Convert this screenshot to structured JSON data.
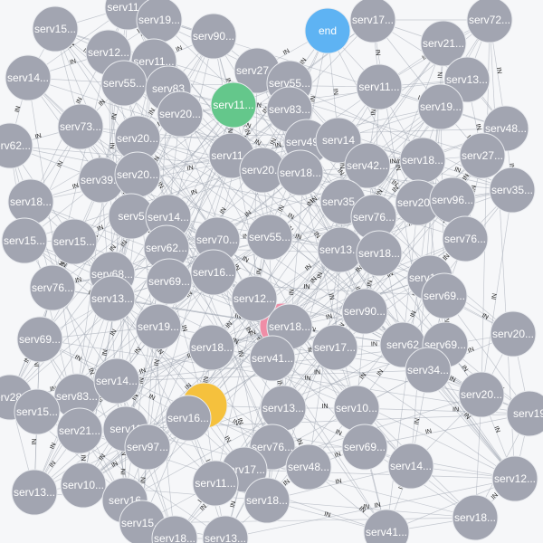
{
  "graph": {
    "edge_label": "IN",
    "colors": {
      "background": "#f6f7f9",
      "node": "#a2a5b1",
      "edge": "#9aa1ad",
      "end": "#5eb3f3",
      "start": "#64c78b",
      "highlight_pink": "#ef8da6",
      "highlight_yellow": "#f5c13d",
      "label_light": "#ffffff",
      "label_dark": "#222222"
    },
    "nodes": [
      {
        "id": "n0",
        "label": "serv11...",
        "color": "node"
      },
      {
        "id": "n1",
        "label": "serv19...",
        "color": "node"
      },
      {
        "id": "n2",
        "label": "serv15...",
        "color": "node"
      },
      {
        "id": "n3",
        "label": "serv90...",
        "color": "node"
      },
      {
        "id": "n4",
        "label": "end",
        "color": "end"
      },
      {
        "id": "n5",
        "label": "serv17...",
        "color": "node"
      },
      {
        "id": "n6",
        "label": "serv72...",
        "color": "node"
      },
      {
        "id": "n7",
        "label": "serv12...",
        "color": "node"
      },
      {
        "id": "n8",
        "label": "serv11...",
        "color": "node"
      },
      {
        "id": "n9",
        "label": "serv21...",
        "color": "node"
      },
      {
        "id": "n10",
        "label": "serv14...",
        "color": "node"
      },
      {
        "id": "n11",
        "label": "serv55...",
        "color": "node"
      },
      {
        "id": "n12",
        "label": "serv83",
        "color": "node"
      },
      {
        "id": "n13",
        "label": "serv27...",
        "color": "node"
      },
      {
        "id": "n14",
        "label": "serv55...",
        "color": "node"
      },
      {
        "id": "n15",
        "label": "serv11...",
        "color": "node"
      },
      {
        "id": "n16",
        "label": "serv13...",
        "color": "node"
      },
      {
        "id": "n17",
        "label": "serv11...",
        "color": "start"
      },
      {
        "id": "n18",
        "label": "serv20...",
        "color": "node"
      },
      {
        "id": "n19",
        "label": "serv83...",
        "color": "node"
      },
      {
        "id": "n20",
        "label": "serv19...",
        "color": "node"
      },
      {
        "id": "n21",
        "label": "serv48...",
        "color": "node"
      },
      {
        "id": "n22",
        "label": "serv73...",
        "color": "node"
      },
      {
        "id": "n23",
        "label": "serv20...",
        "color": "node"
      },
      {
        "id": "n24",
        "label": "serv49...",
        "color": "node"
      },
      {
        "id": "n25",
        "label": "serv14",
        "color": "node"
      },
      {
        "id": "n26",
        "label": "serv62...",
        "color": "node"
      },
      {
        "id": "n27",
        "label": "serv11...",
        "color": "node"
      },
      {
        "id": "n28",
        "label": "serv20...",
        "color": "node"
      },
      {
        "id": "n29",
        "label": "serv18...",
        "color": "node"
      },
      {
        "id": "n30",
        "label": "serv42...",
        "color": "node"
      },
      {
        "id": "n31",
        "label": "serv18...",
        "color": "node"
      },
      {
        "id": "n32",
        "label": "serv27...",
        "color": "node"
      },
      {
        "id": "n33",
        "label": "serv39...",
        "color": "node"
      },
      {
        "id": "n34",
        "label": "serv20...",
        "color": "node"
      },
      {
        "id": "n35",
        "label": "serv18...",
        "color": "node"
      },
      {
        "id": "n36",
        "label": "serv35...",
        "color": "node"
      },
      {
        "id": "n37",
        "label": "serv20...",
        "color": "node"
      },
      {
        "id": "n38",
        "label": "serv96...",
        "color": "node"
      },
      {
        "id": "n39",
        "label": "serv35...",
        "color": "node"
      },
      {
        "id": "n40",
        "label": "serv5",
        "color": "node"
      },
      {
        "id": "n41",
        "label": "serv14...",
        "color": "node"
      },
      {
        "id": "n42",
        "label": "serv76...",
        "color": "node"
      },
      {
        "id": "n43",
        "label": "serv15...",
        "color": "node"
      },
      {
        "id": "n44",
        "label": "serv15...",
        "color": "node"
      },
      {
        "id": "n45",
        "label": "serv62...",
        "color": "node"
      },
      {
        "id": "n46",
        "label": "serv70...",
        "color": "node"
      },
      {
        "id": "n47",
        "label": "serv55...",
        "color": "node"
      },
      {
        "id": "n48",
        "label": "serv13...",
        "color": "node"
      },
      {
        "id": "n49",
        "label": "serv18...",
        "color": "node"
      },
      {
        "id": "n50",
        "label": "serv76...",
        "color": "node"
      },
      {
        "id": "n51",
        "label": "serv68...",
        "color": "node"
      },
      {
        "id": "n52",
        "label": "serv16...",
        "color": "node"
      },
      {
        "id": "n53",
        "label": "serv13...",
        "color": "node"
      },
      {
        "id": "n54",
        "label": "serv76...",
        "color": "node"
      },
      {
        "id": "n55",
        "label": "serv69...",
        "color": "node"
      },
      {
        "id": "n56",
        "label": "serv13...",
        "color": "node"
      },
      {
        "id": "n57",
        "label": "serv12...",
        "color": "node"
      },
      {
        "id": "n58",
        "label": "serv69...",
        "color": "node"
      },
      {
        "id": "n59",
        "label": "serv90...",
        "color": "node"
      },
      {
        "id": "n60",
        "label": "serv19...",
        "color": "node"
      },
      {
        "id": "n61",
        "label": "serv18...",
        "color": "node"
      },
      {
        "id": "n62",
        "label": "serv17...",
        "color": "node"
      },
      {
        "id": "n63",
        "label": "serv62",
        "color": "node"
      },
      {
        "id": "n64",
        "label": "serv69...",
        "color": "node"
      },
      {
        "id": "n65",
        "label": "serv20...",
        "color": "node"
      },
      {
        "id": "n66",
        "label": "serv69...",
        "color": "node"
      },
      {
        "id": "n67",
        "label": "serv18...",
        "color": "node"
      },
      {
        "id": "n68",
        "label": "serv41...",
        "color": "node"
      },
      {
        "id": "n69",
        "label": "serv34...",
        "color": "node"
      },
      {
        "id": "n70",
        "label": "serv28...",
        "color": "node"
      },
      {
        "id": "n71",
        "label": "serv83...",
        "color": "node"
      },
      {
        "id": "n72",
        "label": "serv14...",
        "color": "node"
      },
      {
        "id": "n73",
        "label": "serv15...",
        "color": "node"
      },
      {
        "id": "n74",
        "label": "serv13...",
        "color": "node"
      },
      {
        "id": "n75",
        "label": "serv10...",
        "color": "node"
      },
      {
        "id": "n76",
        "label": "serv20...",
        "color": "node"
      },
      {
        "id": "n77",
        "label": "serv19",
        "color": "node"
      },
      {
        "id": "n78",
        "label": "serv16...",
        "color": "node"
      },
      {
        "id": "n79",
        "label": "serv21...",
        "color": "node"
      },
      {
        "id": "n80",
        "label": "serv11",
        "color": "node"
      },
      {
        "id": "n81",
        "label": "serv97...",
        "color": "node"
      },
      {
        "id": "n82",
        "label": "serv76...",
        "color": "node"
      },
      {
        "id": "n83",
        "label": "serv69...",
        "color": "node"
      },
      {
        "id": "n84",
        "label": "serv14...",
        "color": "node"
      },
      {
        "id": "n85",
        "label": "serv17...",
        "color": "node"
      },
      {
        "id": "n86",
        "label": "serv48...",
        "color": "node"
      },
      {
        "id": "n87",
        "label": "serv13...",
        "color": "node"
      },
      {
        "id": "n88",
        "label": "serv10...",
        "color": "node"
      },
      {
        "id": "n89",
        "label": "serv11...",
        "color": "node"
      },
      {
        "id": "n90",
        "label": "serv16",
        "color": "node"
      },
      {
        "id": "n91",
        "label": "serv18...",
        "color": "node"
      },
      {
        "id": "n92",
        "label": "serv12...",
        "color": "node"
      },
      {
        "id": "n93",
        "label": "serv15...",
        "color": "node"
      },
      {
        "id": "n94",
        "label": "serv18...",
        "color": "node"
      },
      {
        "id": "n95",
        "label": "serv13...",
        "color": "node"
      },
      {
        "id": "n96",
        "label": "serv41...",
        "color": "node"
      },
      {
        "id": "n97",
        "label": "serv18...",
        "color": "node"
      },
      {
        "id": "n98",
        "label": "",
        "color": "highlight_pink"
      },
      {
        "id": "n99",
        "label": "",
        "color": "highlight_yellow"
      }
    ]
  }
}
